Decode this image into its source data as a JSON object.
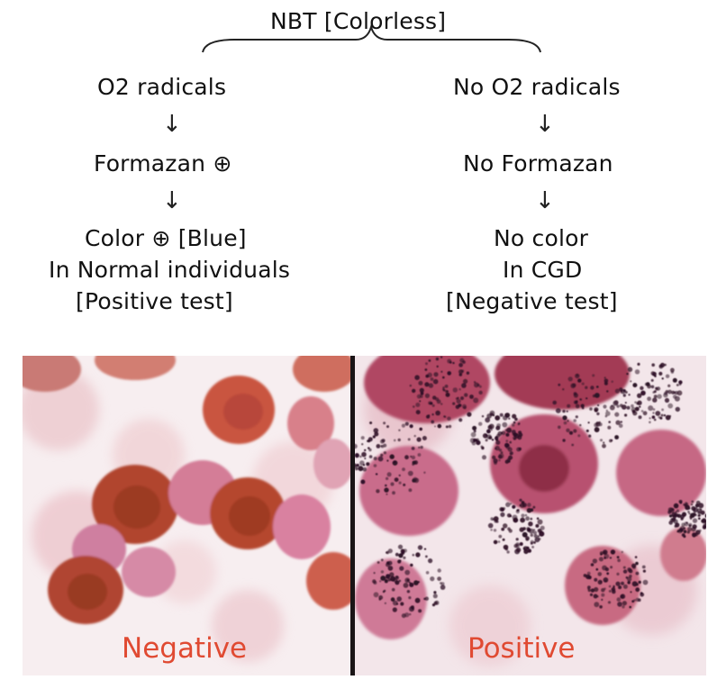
{
  "diagram": {
    "root": "NBT [Colorless]",
    "left": {
      "step1": "O2 radicals",
      "step2": "Formazan ⊕",
      "step3_line1": "Color ⊕ [Blue]",
      "step3_line2": "In Normal individuals",
      "step3_line3": "[Positive test]"
    },
    "right": {
      "step1": "No O2 radicals",
      "step2": "No Formazan",
      "step3_line1": "No color",
      "step3_line2": "In CGD",
      "step3_line3": "[Negative test]"
    },
    "arrow_glyph": "↓"
  },
  "images": {
    "negative_label": "Negative",
    "positive_label": "Positive",
    "label_color": "#e04a32"
  }
}
